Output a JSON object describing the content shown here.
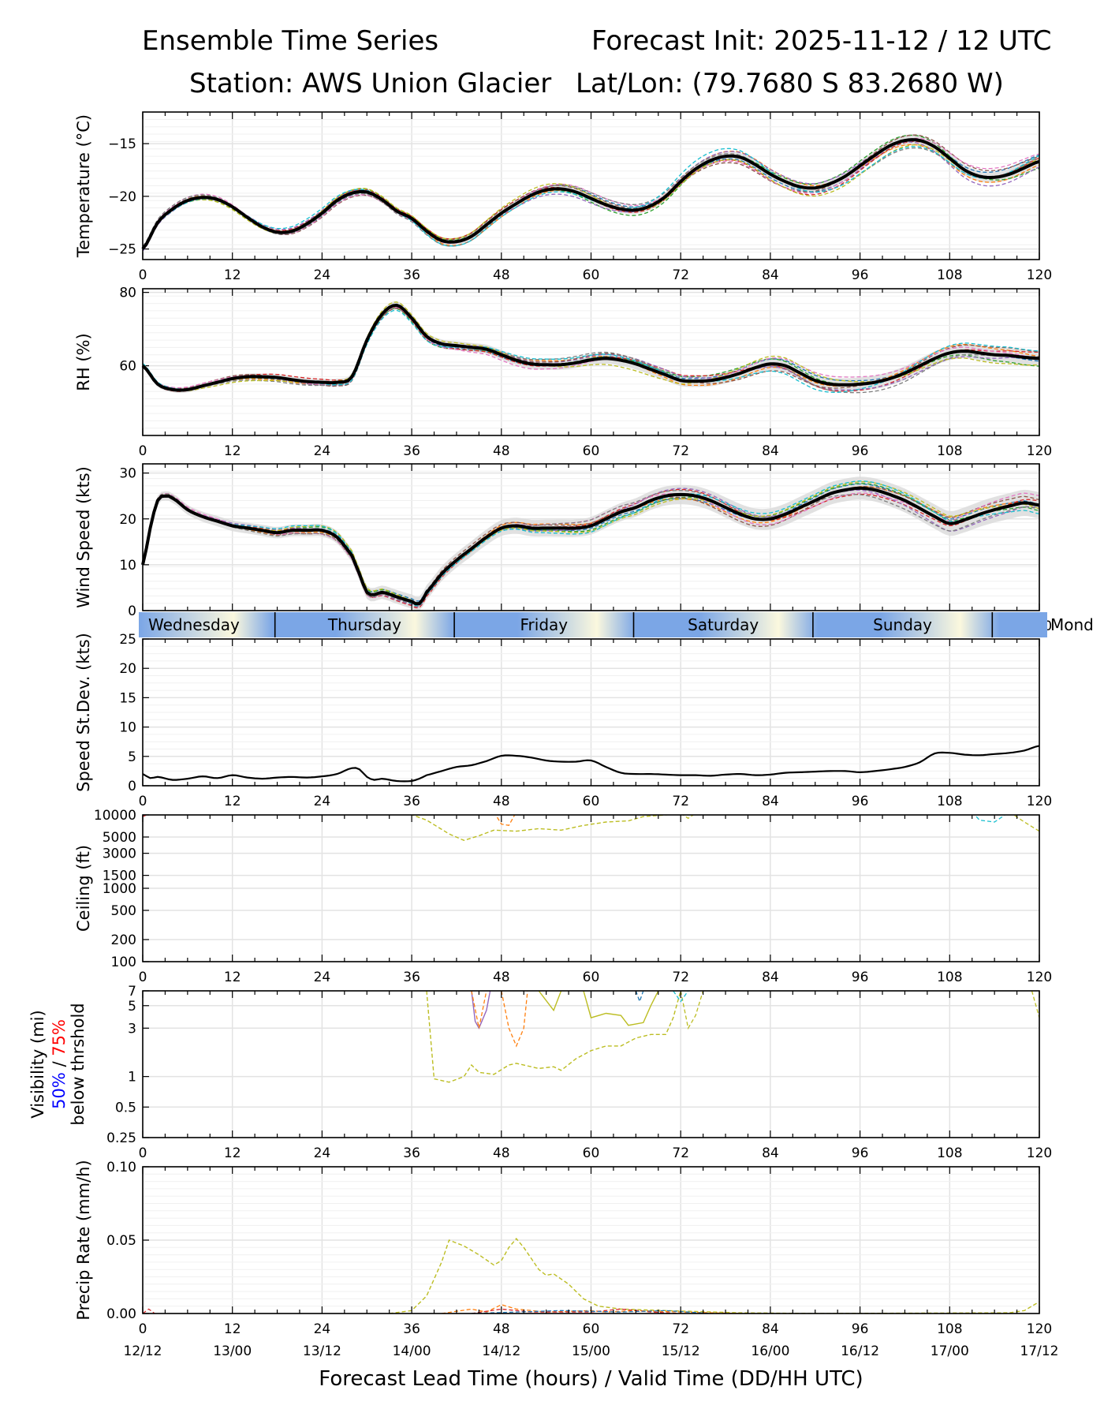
{
  "header": {
    "title": "Ensemble Time Series",
    "init": "Forecast Init: 2025-11-12 / 12 UTC",
    "station": "Station: AWS Union Glacier",
    "latlon": "Lat/Lon: (79.7680 S 83.2680 W)"
  },
  "x_axis": {
    "ticks": [
      0,
      12,
      24,
      36,
      48,
      60,
      72,
      84,
      96,
      108,
      120
    ],
    "valid_labels": [
      "12/12",
      "13/00",
      "13/12",
      "14/00",
      "14/12",
      "15/00",
      "15/12",
      "16/00",
      "16/12",
      "17/00",
      "17/12"
    ],
    "xlabel": "Forecast Lead Time (hours) / Valid Time (DD/HH UTC)"
  },
  "day_strip": {
    "days": [
      "Wednesday",
      "Thursday",
      "Friday",
      "Saturday",
      "Sunday",
      "Mond"
    ],
    "day_start_hours": [
      17.7,
      41.7,
      65.7,
      89.7,
      113.7
    ]
  },
  "colors": {
    "mean": "#000000",
    "members": [
      "#1f77b4",
      "#ff7f0e",
      "#2ca02c",
      "#d62728",
      "#9467bd",
      "#8c564b",
      "#e377c2",
      "#7f7f7f",
      "#bcbd22",
      "#17becf"
    ],
    "spread": "#d9d9d9",
    "grid": "#e6e6e6",
    "strip_night": "#7ba6e6",
    "strip_day": "#fbf8de"
  },
  "chart_data": [
    {
      "type": "line",
      "ylabel": "Temperature (°C)",
      "ylim": [
        -26,
        -12
      ],
      "yticks": [
        -25,
        -20,
        -15
      ],
      "mean_series": {
        "x": [
          0,
          2,
          4,
          6,
          8,
          10,
          12,
          14,
          16,
          18,
          20,
          22,
          24,
          26,
          28,
          30,
          32,
          34,
          36,
          38,
          40,
          42,
          44,
          46,
          48,
          50,
          52,
          54,
          56,
          58,
          60,
          62,
          64,
          66,
          68,
          70,
          72,
          74,
          76,
          78,
          80,
          82,
          84,
          86,
          88,
          90,
          92,
          94,
          96,
          98,
          100,
          102,
          104,
          106,
          108,
          110,
          112,
          114,
          116,
          118,
          120
        ],
        "y": [
          -25,
          -22.5,
          -21.2,
          -20.4,
          -20.1,
          -20.3,
          -21,
          -22,
          -22.9,
          -23.4,
          -23.3,
          -22.6,
          -21.6,
          -20.4,
          -19.7,
          -19.6,
          -20.3,
          -21.4,
          -22.1,
          -23.3,
          -24.2,
          -24.3,
          -23.8,
          -22.7,
          -21.6,
          -20.7,
          -19.9,
          -19.4,
          -19.3,
          -19.6,
          -20.2,
          -20.8,
          -21.2,
          -21.3,
          -20.9,
          -20,
          -18.6,
          -17.4,
          -16.6,
          -16.2,
          -16.3,
          -17,
          -17.9,
          -18.6,
          -19.1,
          -19.2,
          -18.8,
          -18.1,
          -17.1,
          -16.1,
          -15.2,
          -14.7,
          -14.7,
          -15.3,
          -16.4,
          -17.5,
          -18.1,
          -18.2,
          -17.9,
          -17.3,
          -16.7
        ]
      }
    },
    {
      "type": "line",
      "ylabel": "RH (%)",
      "ylim": [
        41,
        81
      ],
      "yticks": [
        60,
        80
      ],
      "mean_series": {
        "x": [
          0,
          2,
          4,
          6,
          8,
          10,
          12,
          14,
          16,
          18,
          20,
          22,
          24,
          26,
          28,
          30,
          32,
          34,
          36,
          38,
          40,
          42,
          44,
          46,
          48,
          50,
          52,
          54,
          56,
          58,
          60,
          62,
          64,
          66,
          68,
          70,
          72,
          74,
          76,
          78,
          80,
          82,
          84,
          86,
          88,
          90,
          92,
          94,
          96,
          98,
          100,
          102,
          104,
          106,
          108,
          110,
          112,
          114,
          116,
          118,
          120
        ],
        "y": [
          60,
          55,
          53.5,
          53.5,
          54.5,
          55.5,
          56.5,
          57,
          57,
          56.8,
          56.2,
          55.7,
          55.5,
          55.5,
          57,
          67,
          74,
          76.5,
          73,
          68,
          66,
          65.5,
          65,
          64.5,
          63,
          61.5,
          60.5,
          60.3,
          60.3,
          60.8,
          61.6,
          62,
          61.5,
          60.5,
          59,
          57.5,
          56,
          55.8,
          56,
          56.8,
          58,
          59.5,
          60.5,
          60,
          58,
          56,
          55,
          54.8,
          55,
          55.5,
          56.5,
          58,
          60,
          62,
          63.5,
          64,
          63.5,
          63,
          62.8,
          62.3,
          62
        ]
      }
    },
    {
      "type": "line",
      "ylabel": "Wind Speed (kts)",
      "ylim": [
        0,
        32
      ],
      "yticks": [
        0,
        10,
        20,
        30
      ],
      "mean_series": {
        "x": [
          0,
          1,
          2,
          3,
          4,
          6,
          8,
          10,
          12,
          14,
          16,
          18,
          20,
          22,
          24,
          26,
          28,
          29,
          30,
          31,
          32,
          34,
          36,
          37,
          38,
          40,
          42,
          44,
          46,
          48,
          50,
          52,
          54,
          56,
          58,
          60,
          62,
          64,
          66,
          68,
          70,
          72,
          74,
          76,
          78,
          80,
          82,
          84,
          86,
          88,
          90,
          92,
          94,
          96,
          98,
          100,
          102,
          104,
          106,
          108,
          110,
          112,
          114,
          116,
          118,
          120
        ],
        "y": [
          10,
          18,
          24,
          25,
          24.5,
          22,
          20.5,
          19.5,
          18.5,
          18,
          17.5,
          17,
          17.5,
          17.5,
          17.5,
          16,
          12,
          8,
          4,
          3.5,
          4,
          3,
          2,
          1.5,
          4,
          8,
          11,
          13.5,
          16,
          18,
          18.5,
          18,
          18,
          18,
          18,
          18.5,
          20,
          21.5,
          22.5,
          24,
          25,
          25.3,
          25,
          24,
          22.5,
          21,
          20,
          20,
          21,
          22.5,
          24,
          25.5,
          26.3,
          26.7,
          26.3,
          25.3,
          24,
          22.3,
          20.5,
          19,
          19.8,
          21,
          22,
          22.8,
          23.5,
          23
        ]
      }
    },
    {
      "type": "line",
      "ylabel": "Speed St.Dev. (kts)",
      "ylim": [
        0,
        25
      ],
      "yticks": [
        0,
        5,
        10,
        15,
        20,
        25
      ],
      "mean_series": {
        "x": [
          0,
          1,
          2,
          4,
          6,
          8,
          10,
          12,
          14,
          16,
          18,
          20,
          22,
          24,
          26,
          28,
          29,
          30,
          31,
          32,
          34,
          36,
          37,
          38,
          40,
          42,
          44,
          46,
          48,
          50,
          52,
          54,
          56,
          58,
          60,
          62,
          64,
          66,
          68,
          70,
          72,
          74,
          76,
          78,
          80,
          82,
          84,
          86,
          88,
          90,
          92,
          94,
          96,
          98,
          100,
          102,
          104,
          106,
          108,
          110,
          112,
          114,
          116,
          118,
          120
        ],
        "y": [
          2,
          1.3,
          1.5,
          1,
          1.2,
          1.6,
          1.3,
          1.8,
          1.4,
          1.2,
          1.4,
          1.5,
          1.4,
          1.6,
          2,
          3,
          2.8,
          1.5,
          1,
          1.2,
          0.8,
          0.8,
          1.2,
          1.8,
          2.5,
          3.2,
          3.5,
          4.2,
          5.1,
          5.1,
          4.8,
          4.3,
          4.1,
          4.1,
          4.3,
          3.2,
          2.2,
          2,
          2,
          1.9,
          1.8,
          1.8,
          1.7,
          1.9,
          2,
          1.8,
          1.9,
          2.2,
          2.3,
          2.4,
          2.5,
          2.5,
          2.3,
          2.5,
          2.8,
          3.2,
          4,
          5.5,
          5.6,
          5.3,
          5.2,
          5.4,
          5.6,
          6,
          6.8
        ]
      }
    },
    {
      "type": "line",
      "ylabel": "Ceiling (ft)",
      "yscale": "log",
      "ylim": [
        100,
        10000
      ],
      "yticks": [
        100,
        200,
        500,
        1000,
        1500,
        3000,
        5000,
        10000
      ]
    },
    {
      "type": "line",
      "ylabel": "Visibility (mi)",
      "ylabel_50": "50%",
      "ylabel_sep": " / ",
      "ylabel_75": "75%",
      "ylabel_3": "below thrshold",
      "yscale": "log",
      "ylim": [
        0.25,
        7
      ],
      "yticks": [
        0.25,
        0.5,
        1,
        3,
        5,
        7
      ]
    },
    {
      "type": "line",
      "ylabel": "Precip Rate (mm/h)",
      "ylim": [
        0,
        0.1
      ],
      "yticks": [
        "0.00",
        "0.05",
        "0.10"
      ]
    }
  ]
}
